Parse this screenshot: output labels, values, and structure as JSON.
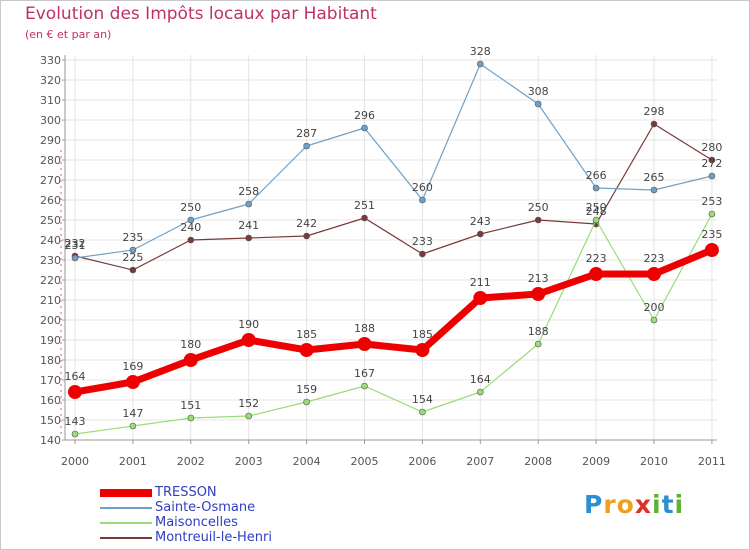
{
  "title": "Evolution des Impôts locaux par Habitant",
  "subtitle": "(en € et par an)",
  "logo_text": "Proxiti",
  "chart_data": {
    "type": "line",
    "title": "Evolution des Impôts locaux par Habitant",
    "subtitle": "(en € et par an)",
    "xlabel": "",
    "ylabel": "",
    "x": [
      "2000",
      "2001",
      "2002",
      "2003",
      "2004",
      "2005",
      "2006",
      "2007",
      "2008",
      "2009",
      "2010",
      "2011"
    ],
    "ylim": [
      140,
      330
    ],
    "yticks": [
      140,
      150,
      160,
      170,
      180,
      190,
      200,
      210,
      220,
      230,
      240,
      250,
      260,
      270,
      280,
      290,
      300,
      310,
      320,
      330
    ],
    "grid": true,
    "legend": "bottom-left",
    "series": [
      {
        "name": "TRESSON",
        "color": "#ee0000",
        "values": [
          164,
          169,
          180,
          190,
          185,
          188,
          185,
          211,
          213,
          223,
          223,
          235
        ]
      },
      {
        "name": "Sainte-Osmane",
        "color": "#6fa1c8",
        "values": [
          231,
          235,
          250,
          258,
          287,
          296,
          260,
          328,
          308,
          266,
          265,
          272
        ]
      },
      {
        "name": "Maisoncelles",
        "color": "#99dd77",
        "values": [
          143,
          147,
          151,
          152,
          159,
          167,
          154,
          164,
          188,
          250,
          200,
          253
        ]
      },
      {
        "name": "Montreuil-le-Henri",
        "color": "#7a3a3a",
        "values": [
          232,
          225,
          240,
          241,
          242,
          251,
          233,
          243,
          250,
          248,
          298,
          280
        ]
      }
    ]
  }
}
